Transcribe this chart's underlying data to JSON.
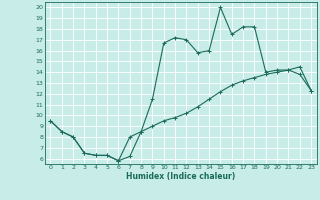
{
  "xlabel": "Humidex (Indice chaleur)",
  "bg_color": "#c8ece8",
  "grid_color": "#ffffff",
  "line_color": "#1a6b5a",
  "xlim": [
    -0.5,
    23.5
  ],
  "ylim": [
    5.5,
    20.5
  ],
  "yticks": [
    6,
    7,
    8,
    9,
    10,
    11,
    12,
    13,
    14,
    15,
    16,
    17,
    18,
    19,
    20
  ],
  "xticks": [
    0,
    1,
    2,
    3,
    4,
    5,
    6,
    7,
    8,
    9,
    10,
    11,
    12,
    13,
    14,
    15,
    16,
    17,
    18,
    19,
    20,
    21,
    22,
    23
  ],
  "upper_x": [
    0,
    1,
    2,
    3,
    4,
    5,
    6,
    7,
    8,
    9,
    10,
    11,
    12,
    13,
    14,
    15,
    16,
    17,
    18,
    19,
    20,
    21,
    22,
    23
  ],
  "upper_y": [
    9.5,
    8.5,
    8.0,
    6.5,
    6.3,
    6.3,
    5.8,
    6.2,
    8.5,
    11.5,
    16.7,
    17.2,
    17.0,
    15.8,
    16.0,
    20.0,
    17.5,
    18.2,
    18.2,
    14.0,
    14.2,
    14.2,
    13.8,
    12.3
  ],
  "lower_x": [
    0,
    1,
    2,
    3,
    4,
    5,
    6,
    7,
    8,
    9,
    10,
    11,
    12,
    13,
    14,
    15,
    16,
    17,
    18,
    19,
    20,
    21,
    22,
    23
  ],
  "lower_y": [
    9.5,
    8.5,
    8.0,
    6.5,
    6.3,
    6.3,
    5.8,
    8.0,
    8.5,
    9.0,
    9.5,
    9.8,
    10.2,
    10.8,
    11.5,
    12.2,
    12.8,
    13.2,
    13.5,
    13.8,
    14.0,
    14.2,
    14.5,
    12.3
  ]
}
